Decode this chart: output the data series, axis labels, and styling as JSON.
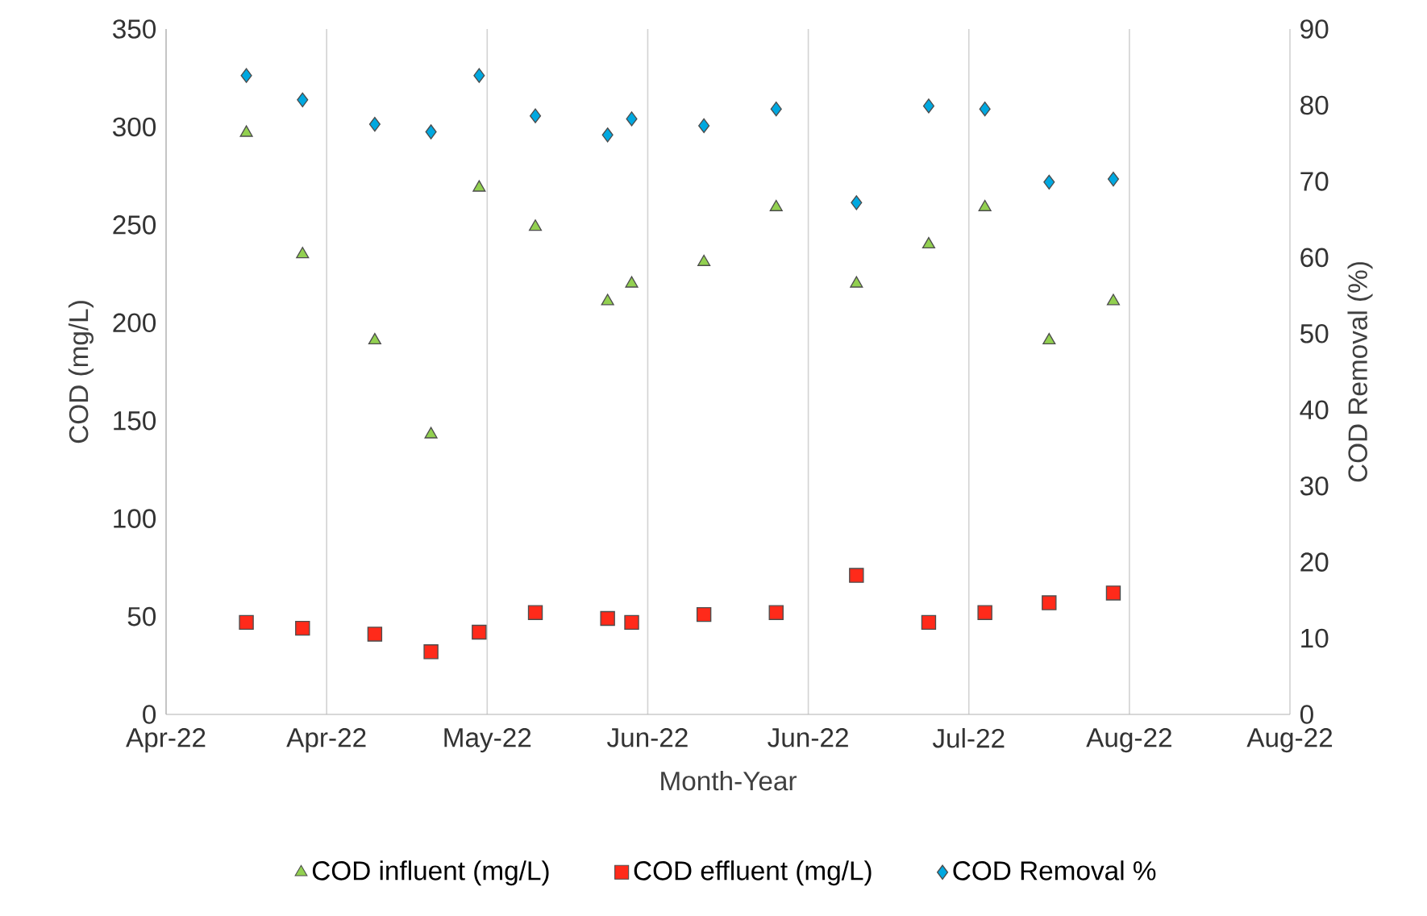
{
  "chart_data": {
    "type": "scatter",
    "xlabel": "Month-Year",
    "ylabel": "COD (mg/L)",
    "y2label": "COD Removal (%)",
    "x": [
      "2022-04-20",
      "2022-04-27",
      "2022-05-06",
      "2022-05-13",
      "2022-05-19",
      "2022-05-26",
      "2022-06-04",
      "2022-06-07",
      "2022-06-16",
      "2022-06-25",
      "2022-07-05",
      "2022-07-14",
      "2022-07-21",
      "2022-07-29",
      "2022-08-06"
    ],
    "xlim": [
      "2022-04-10",
      "2022-08-28"
    ],
    "xticks": [
      {
        "value": "2022-04-10",
        "label": "Apr-22"
      },
      {
        "value": "2022-04-30",
        "label": "Apr-22"
      },
      {
        "value": "2022-05-20",
        "label": "May-22"
      },
      {
        "value": "2022-06-09",
        "label": "Jun-22"
      },
      {
        "value": "2022-06-29",
        "label": "Jun-22"
      },
      {
        "value": "2022-07-19",
        "label": "Jul-22"
      },
      {
        "value": "2022-08-08",
        "label": "Aug-22"
      },
      {
        "value": "2022-08-28",
        "label": "Aug-22"
      }
    ],
    "ylim": [
      0,
      350
    ],
    "yticks": [
      0,
      50,
      100,
      150,
      200,
      250,
      300,
      350
    ],
    "y2lim": [
      0,
      90
    ],
    "y2ticks": [
      0,
      10,
      20,
      30,
      40,
      50,
      60,
      70,
      80,
      90
    ],
    "grid": "x",
    "legend": "bottom",
    "series": [
      {
        "name": "COD influent (mg/L)",
        "color": "#92d050",
        "marker": "triangle",
        "values": [
          297,
          235,
          191,
          143,
          269,
          249,
          211,
          220,
          231,
          259,
          220,
          240,
          259,
          191,
          211
        ]
      },
      {
        "name": "COD effluent (mg/L)",
        "color": "#ff2a1a",
        "marker": "square",
        "values": [
          47,
          44,
          41,
          32,
          42,
          52,
          49,
          47,
          51,
          52,
          71,
          47,
          52,
          57,
          62
        ]
      },
      {
        "name": "COD Removal %",
        "color": "#00a8e0",
        "marker": "diamond",
        "axis": "y2",
        "values": [
          83.9,
          80.7,
          77.5,
          76.5,
          83.9,
          78.6,
          76.1,
          78.2,
          77.3,
          79.5,
          67.2,
          79.9,
          79.5,
          69.9,
          70.3
        ]
      }
    ]
  }
}
